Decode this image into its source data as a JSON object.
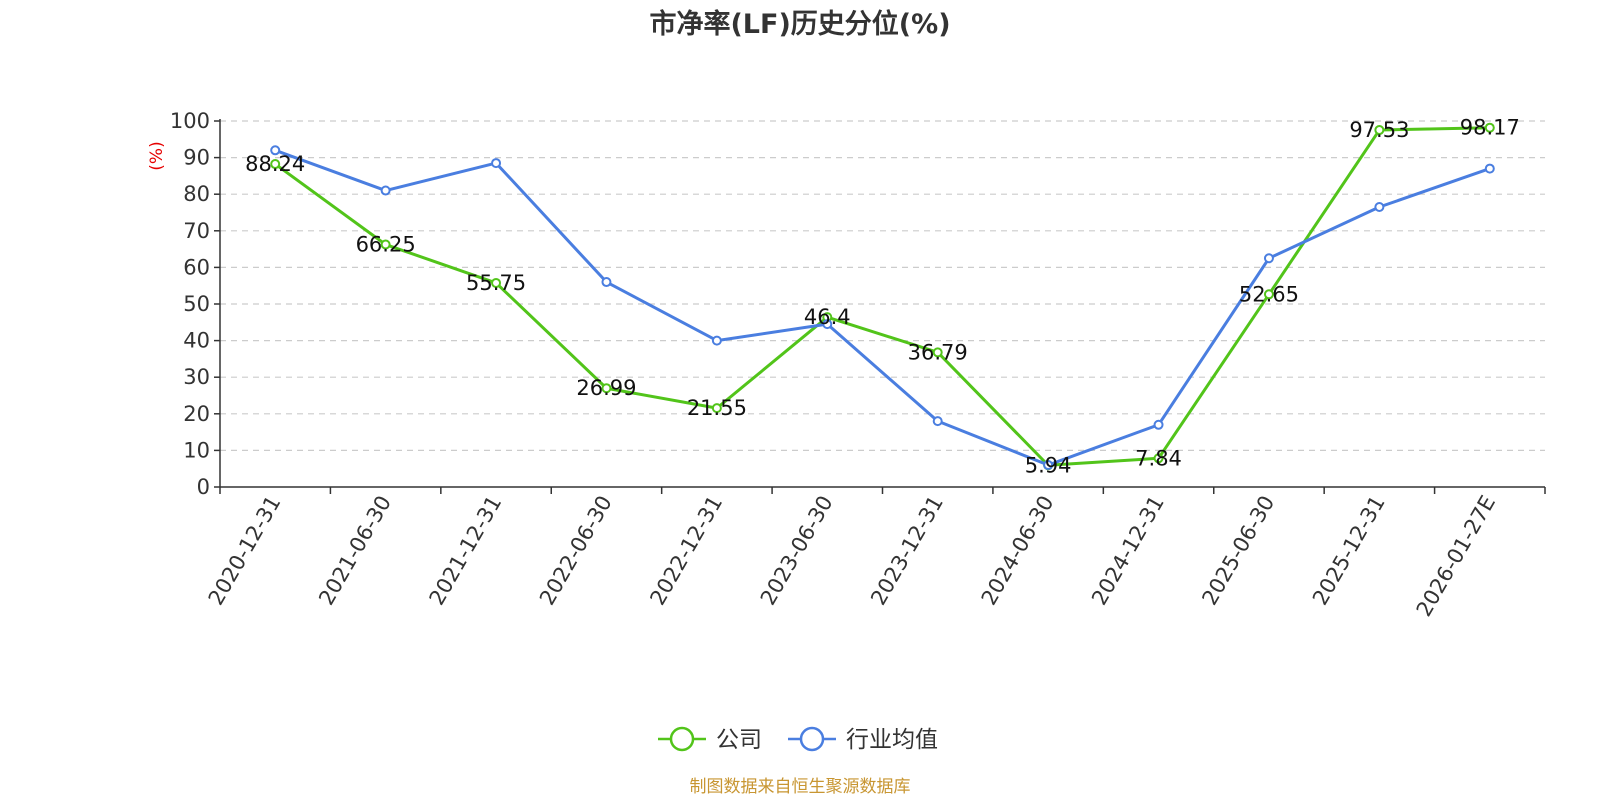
{
  "chart_data": {
    "type": "line",
    "title": "市净率(LF)历史分位(%)",
    "ylabel": "(%)",
    "ylim": [
      0,
      100
    ],
    "yticks": [
      0,
      10,
      20,
      30,
      40,
      50,
      60,
      70,
      80,
      90,
      100
    ],
    "grid": true,
    "legend_position": "bottom",
    "categories": [
      "2020-12-31",
      "2021-06-30",
      "2021-12-31",
      "2022-06-30",
      "2022-12-31",
      "2023-06-30",
      "2023-12-31",
      "2024-06-30",
      "2024-12-31",
      "2025-06-30",
      "2025-12-31",
      "2026-01-27E"
    ],
    "series": [
      {
        "name": "公司",
        "color": "#52c41a",
        "values": [
          88.24,
          66.25,
          55.75,
          26.99,
          21.55,
          46.4,
          36.79,
          5.94,
          7.84,
          52.65,
          97.53,
          98.17
        ],
        "labels": [
          "88.24",
          "66.25",
          "55.75",
          "26.99",
          "21.55",
          "46.4",
          "36.79",
          "5.94",
          "7.84",
          "52.65",
          "97.53",
          "98.17"
        ],
        "show_labels": true
      },
      {
        "name": "行业均值",
        "color": "#4a7ee0",
        "values": [
          92,
          81,
          88.5,
          56,
          40,
          44.5,
          18,
          6,
          17,
          62.5,
          76.5,
          87
        ],
        "show_labels": false
      }
    ],
    "source": "制图数据来自恒生聚源数据库"
  }
}
